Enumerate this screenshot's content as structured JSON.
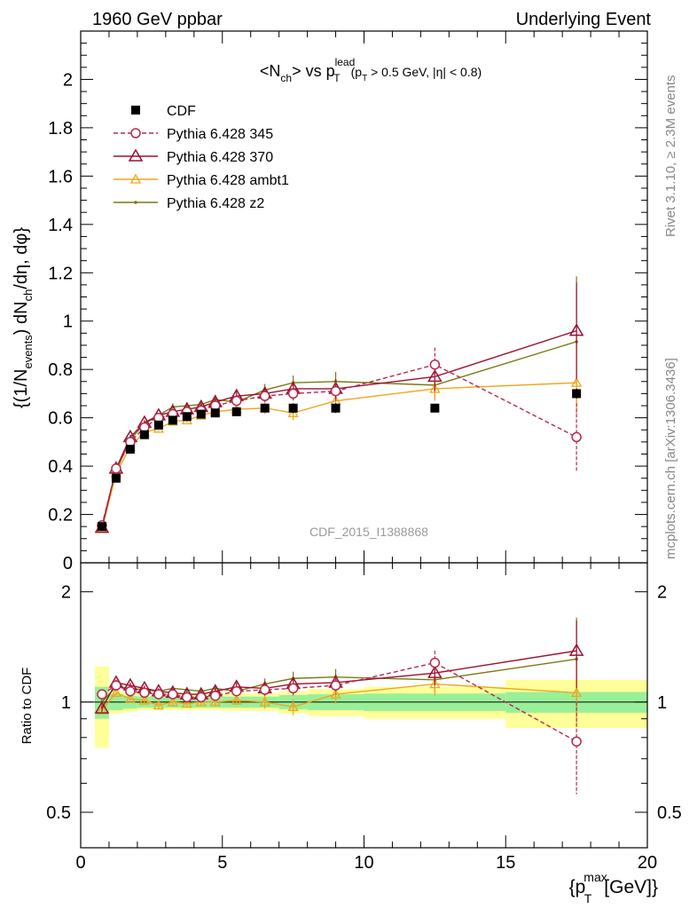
{
  "header": {
    "left": "1960 GeV ppbar",
    "right": "Underlying Event"
  },
  "side": {
    "rivet": "Rivet 3.1.10, ≥ 2.3M events",
    "mcplots": "mcplots.cern.ch [arXiv:1306.3436]"
  },
  "watermark": "CDF_2015_I1388868",
  "colors": {
    "cdf": "#000000",
    "p345": "#b52a4e",
    "p370": "#9b1030",
    "ambt1": "#f0a51c",
    "z2": "#7a7a12",
    "band_inner": "#99f099",
    "band_outer": "#ffff99"
  },
  "chart_data": [
    {
      "panel": "main",
      "type": "line",
      "title": "<N_ch> vs p_T^lead (p_T > 0.5 GeV, |η| < 0.8)",
      "xlabel": "{p_T^max [GeV]}",
      "ylabel": "{(1/N_events) dN_ch/dη, dφ}",
      "xlim": [
        0,
        20
      ],
      "ylim": [
        0,
        2.2
      ],
      "yticks": [
        "0",
        "0.2",
        "0.4",
        "0.6",
        "0.8",
        "1",
        "1.2",
        "1.4",
        "1.6",
        "1.8",
        "2"
      ],
      "xticks": [
        "0",
        "5",
        "10",
        "15",
        "20"
      ],
      "legend_position": "top-left",
      "x": [
        0.75,
        1.25,
        1.75,
        2.25,
        2.75,
        3.25,
        3.75,
        4.25,
        4.75,
        5.5,
        6.5,
        7.5,
        9.0,
        12.5,
        17.5
      ],
      "series": [
        {
          "name": "CDF",
          "key": "cdf",
          "style": "square",
          "values": [
            0.15,
            0.35,
            0.47,
            0.53,
            0.57,
            0.59,
            0.605,
            0.615,
            0.62,
            0.625,
            0.64,
            0.64,
            0.64,
            0.64,
            0.7
          ],
          "yerr": [
            0.01,
            0.01,
            0.01,
            0.01,
            0.01,
            0.01,
            0.01,
            0.01,
            0.01,
            0.01,
            0.015,
            0.02,
            0.02,
            0.015,
            0.02
          ]
        },
        {
          "name": "Pythia 6.428 345",
          "key": "p345",
          "style": "circle-dashed",
          "values": [
            0.155,
            0.39,
            0.5,
            0.56,
            0.6,
            0.615,
            0.625,
            0.63,
            0.65,
            0.67,
            0.69,
            0.7,
            0.71,
            0.82,
            0.52
          ],
          "yerr": [
            0.01,
            0.01,
            0.01,
            0.01,
            0.01,
            0.01,
            0.01,
            0.01,
            0.015,
            0.02,
            0.025,
            0.03,
            0.04,
            0.07,
            0.14
          ]
        },
        {
          "name": "Pythia 6.428 370",
          "key": "p370",
          "style": "triangle",
          "values": [
            0.145,
            0.39,
            0.52,
            0.58,
            0.61,
            0.625,
            0.635,
            0.645,
            0.665,
            0.69,
            0.7,
            0.72,
            0.72,
            0.77,
            0.96
          ],
          "yerr": [
            0.01,
            0.01,
            0.01,
            0.01,
            0.01,
            0.01,
            0.01,
            0.01,
            0.015,
            0.02,
            0.025,
            0.03,
            0.04,
            0.06,
            0.2
          ]
        },
        {
          "name": "Pythia 6.428 ambt1",
          "key": "ambt1",
          "style": "triangle-small",
          "values": [
            0.14,
            0.37,
            0.48,
            0.54,
            0.555,
            0.585,
            0.59,
            0.61,
            0.625,
            0.635,
            0.64,
            0.62,
            0.67,
            0.72,
            0.745
          ],
          "yerr": [
            0.01,
            0.01,
            0.01,
            0.01,
            0.01,
            0.01,
            0.01,
            0.01,
            0.015,
            0.02,
            0.025,
            0.03,
            0.04,
            0.05,
            0.13
          ]
        },
        {
          "name": "Pythia 6.428 z2",
          "key": "z2",
          "style": "dot",
          "values": [
            0.15,
            0.38,
            0.51,
            0.575,
            0.61,
            0.645,
            0.65,
            0.655,
            0.675,
            0.665,
            0.715,
            0.745,
            0.75,
            0.735,
            0.915
          ],
          "yerr": [
            0.01,
            0.01,
            0.01,
            0.01,
            0.01,
            0.015,
            0.015,
            0.015,
            0.02,
            0.02,
            0.025,
            0.03,
            0.04,
            0.06,
            0.27
          ]
        }
      ]
    },
    {
      "panel": "ratio",
      "type": "line",
      "ylabel": "Ratio to CDF",
      "xlabel": "{p_T^max [GeV]}",
      "xlim": [
        0,
        20
      ],
      "ylim": [
        0.4,
        2.4
      ],
      "yscale": "log",
      "yticks": [
        "0.5",
        "1",
        "2"
      ],
      "bin_edges": [
        0.5,
        1.0,
        1.5,
        2.0,
        2.5,
        3.0,
        3.5,
        4.0,
        4.5,
        5.0,
        6.0,
        7.0,
        8.0,
        10.0,
        15.0,
        20.0
      ],
      "band_inner": [
        0.1,
        0.05,
        0.04,
        0.035,
        0.035,
        0.035,
        0.035,
        0.035,
        0.035,
        0.035,
        0.035,
        0.045,
        0.05,
        0.055,
        0.065
      ],
      "band_outer": [
        0.25,
        0.07,
        0.06,
        0.05,
        0.05,
        0.05,
        0.05,
        0.05,
        0.05,
        0.055,
        0.055,
        0.07,
        0.085,
        0.1,
        0.15
      ],
      "x": [
        0.75,
        1.25,
        1.75,
        2.25,
        2.75,
        3.25,
        3.75,
        4.25,
        4.75,
        5.5,
        6.5,
        7.5,
        9.0,
        12.5,
        17.5
      ],
      "series": [
        {
          "name": "Pythia 6.428 345",
          "key": "p345",
          "values": [
            1.05,
            1.11,
            1.07,
            1.06,
            1.05,
            1.05,
            1.03,
            1.03,
            1.04,
            1.07,
            1.08,
            1.09,
            1.11,
            1.28,
            0.78
          ],
          "yerr": [
            0.02,
            0.02,
            0.02,
            0.02,
            0.02,
            0.02,
            0.02,
            0.02,
            0.02,
            0.03,
            0.04,
            0.05,
            0.06,
            0.1,
            0.22
          ]
        },
        {
          "name": "Pythia 6.428 370",
          "key": "p370",
          "values": [
            0.96,
            1.13,
            1.11,
            1.09,
            1.07,
            1.06,
            1.05,
            1.05,
            1.07,
            1.1,
            1.09,
            1.12,
            1.13,
            1.2,
            1.38
          ],
          "yerr": [
            0.02,
            0.02,
            0.02,
            0.02,
            0.02,
            0.02,
            0.02,
            0.02,
            0.02,
            0.03,
            0.04,
            0.05,
            0.06,
            0.09,
            0.29
          ]
        },
        {
          "name": "Pythia 6.428 ambt1",
          "key": "ambt1",
          "values": [
            0.95,
            1.06,
            1.02,
            1.01,
            0.98,
            1.0,
            0.99,
            1.0,
            1.0,
            1.01,
            1.0,
            0.97,
            1.05,
            1.12,
            1.06
          ],
          "yerr": [
            0.02,
            0.02,
            0.02,
            0.02,
            0.02,
            0.02,
            0.02,
            0.02,
            0.02,
            0.03,
            0.04,
            0.05,
            0.06,
            0.08,
            0.19
          ]
        },
        {
          "name": "Pythia 6.428 z2",
          "key": "z2",
          "values": [
            1.0,
            1.1,
            1.09,
            1.08,
            1.07,
            1.09,
            1.08,
            1.07,
            1.09,
            1.07,
            1.12,
            1.16,
            1.17,
            1.15,
            1.31
          ],
          "yerr": [
            0.02,
            0.02,
            0.02,
            0.02,
            0.02,
            0.02,
            0.02,
            0.02,
            0.02,
            0.03,
            0.04,
            0.05,
            0.06,
            0.09,
            0.39
          ]
        }
      ]
    }
  ]
}
